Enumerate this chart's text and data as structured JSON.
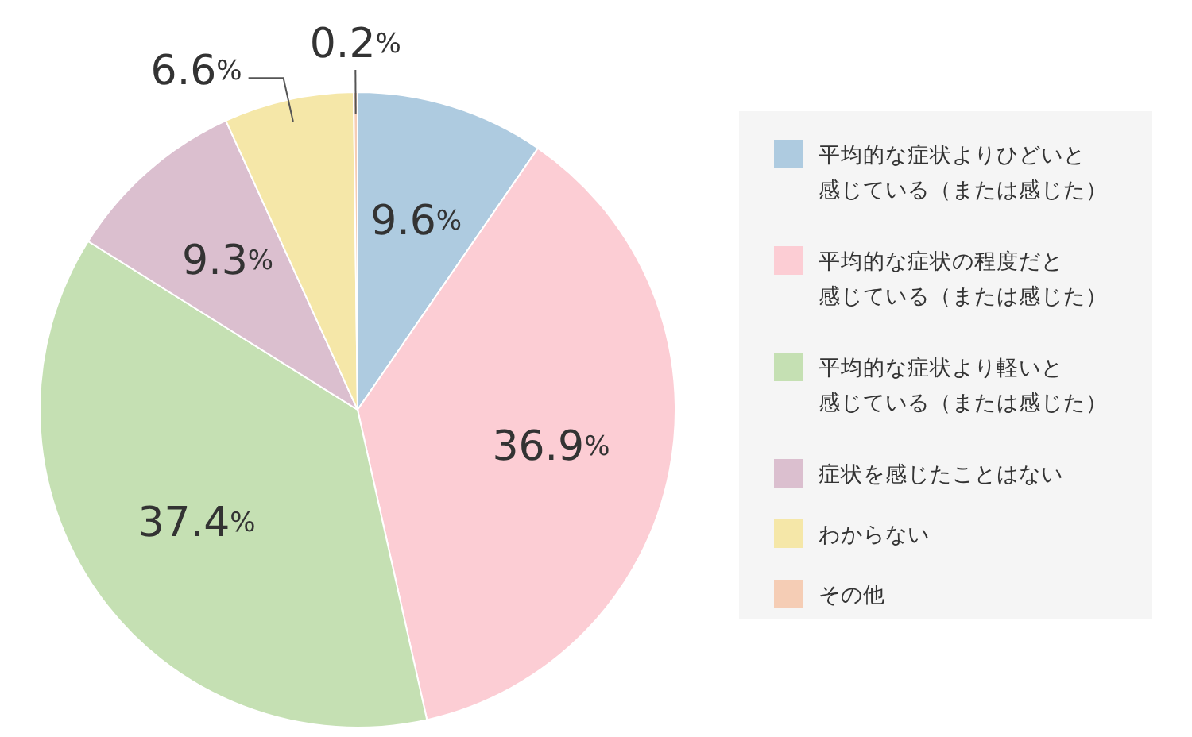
{
  "chart_data": {
    "type": "pie",
    "categories": [
      "平均的な症状よりひどいと感じている（または感じた）",
      "平均的な症状の程度だと感じている（または感じた）",
      "平均的な症状より軽いと感じている（または感じた）",
      "症状を感じたことはない",
      "わからない",
      "その他"
    ],
    "values": [
      9.6,
      36.9,
      37.4,
      9.3,
      6.6,
      0.2
    ],
    "colors": [
      "#aecbe0",
      "#fccdd4",
      "#c5e0b3",
      "#dbbfcf",
      "#f5e7a8",
      "#f5cdb5"
    ],
    "value_labels": [
      "9.6%",
      "36.9%",
      "37.4%",
      "9.3%",
      "6.6%",
      "0.2%"
    ],
    "legend": "right"
  }
}
